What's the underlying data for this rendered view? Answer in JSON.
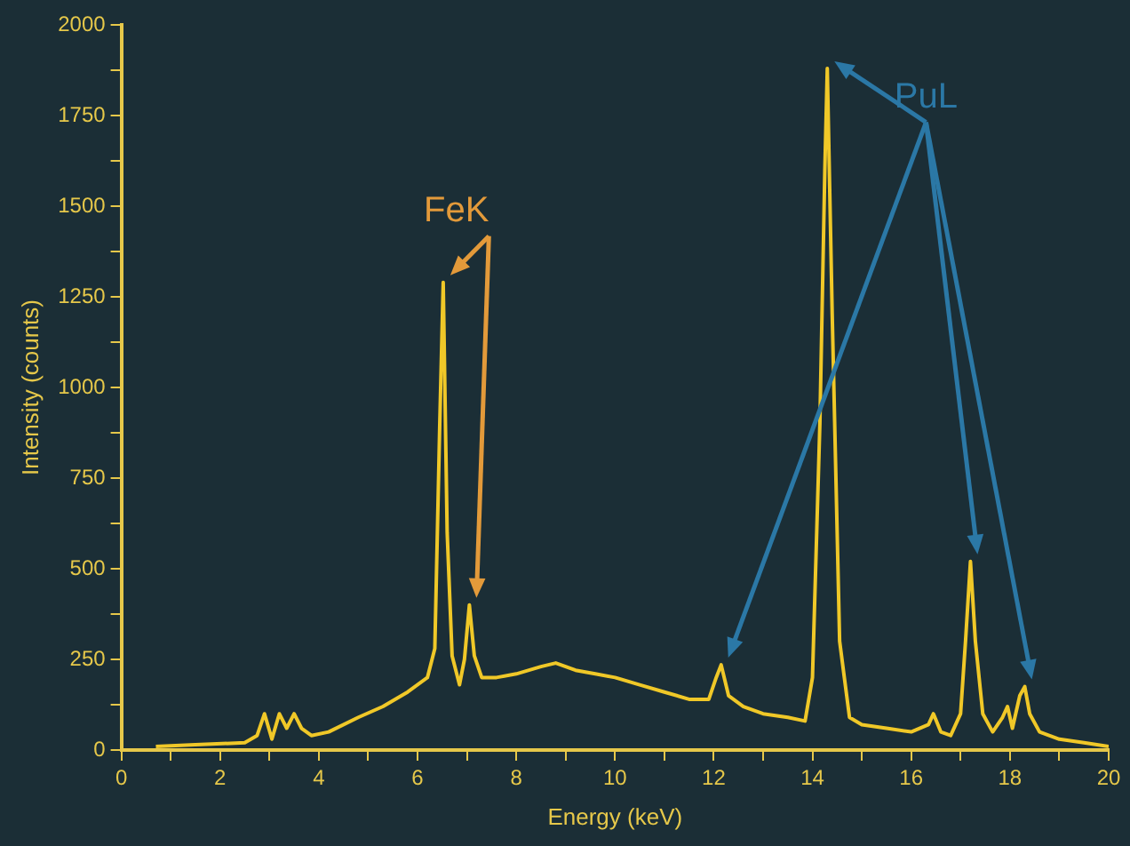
{
  "chart_data": {
    "type": "line",
    "xlabel": "Energy (keV)",
    "ylabel": "Intensity (counts)",
    "xlim": [
      0,
      20
    ],
    "ylim": [
      0,
      2000
    ],
    "xticks": [
      0,
      {
        "value": 1,
        "label": null
      },
      2,
      {
        "value": 3,
        "label": null
      },
      4,
      {
        "value": 5,
        "label": null
      },
      6,
      {
        "value": 7,
        "label": null
      },
      8,
      {
        "value": 9,
        "label": null
      },
      10,
      {
        "value": 11,
        "label": null
      },
      12,
      {
        "value": 13,
        "label": null
      },
      14,
      {
        "value": 15,
        "label": null
      },
      16,
      {
        "value": 17,
        "label": null
      },
      18,
      {
        "value": 19,
        "label": null
      },
      20
    ],
    "yticks": [
      0,
      {
        "value": 125,
        "label": null
      },
      250,
      {
        "value": 375,
        "label": null
      },
      500,
      {
        "value": 625,
        "label": null
      },
      750,
      {
        "value": 875,
        "label": null
      },
      1000,
      {
        "value": 1125,
        "label": null
      },
      1250,
      {
        "value": 1375,
        "label": null
      },
      1500,
      {
        "value": 1625,
        "label": null
      },
      1750,
      {
        "value": 1875,
        "label": null
      },
      2000
    ],
    "grid": false,
    "legend": false,
    "marker": "none",
    "line_style": "solid",
    "series": [
      {
        "color": "#f0c828",
        "x": [
          0.7,
          1.5,
          2.5,
          2.75,
          2.9,
          3.05,
          3.2,
          3.35,
          3.5,
          3.65,
          3.85,
          4.2,
          4.8,
          5.3,
          5.8,
          6.2,
          6.35,
          6.45,
          6.52,
          6.6,
          6.7,
          6.85,
          6.95,
          7.05,
          7.15,
          7.3,
          7.6,
          8.0,
          8.5,
          8.8,
          9.2,
          9.6,
          10.0,
          10.5,
          11.0,
          11.5,
          11.9,
          12.05,
          12.15,
          12.3,
          12.6,
          13.0,
          13.5,
          13.85,
          14.0,
          14.15,
          14.25,
          14.3,
          14.4,
          14.55,
          14.75,
          15.0,
          15.5,
          16.0,
          16.35,
          16.45,
          16.6,
          16.8,
          17.0,
          17.1,
          17.2,
          17.3,
          17.45,
          17.65,
          17.85,
          17.95,
          18.05,
          18.2,
          18.3,
          18.4,
          18.6,
          19.0,
          19.5,
          20.0
        ],
        "values": [
          10,
          15,
          20,
          40,
          100,
          30,
          100,
          60,
          100,
          60,
          40,
          50,
          90,
          120,
          160,
          200,
          280,
          900,
          1290,
          600,
          260,
          180,
          250,
          400,
          260,
          200,
          200,
          210,
          230,
          240,
          220,
          210,
          200,
          180,
          160,
          140,
          140,
          200,
          235,
          150,
          120,
          100,
          90,
          80,
          200,
          900,
          1600,
          1880,
          1200,
          300,
          90,
          70,
          60,
          50,
          70,
          100,
          50,
          40,
          100,
          300,
          520,
          300,
          100,
          50,
          90,
          120,
          60,
          150,
          175,
          100,
          50,
          30,
          20,
          10
        ]
      }
    ],
    "annotations": [
      {
        "text": "FeK",
        "x": 6.52,
        "y": 1290
      },
      {
        "text": "PuL",
        "x": 14.3,
        "y": 1880
      }
    ]
  }
}
